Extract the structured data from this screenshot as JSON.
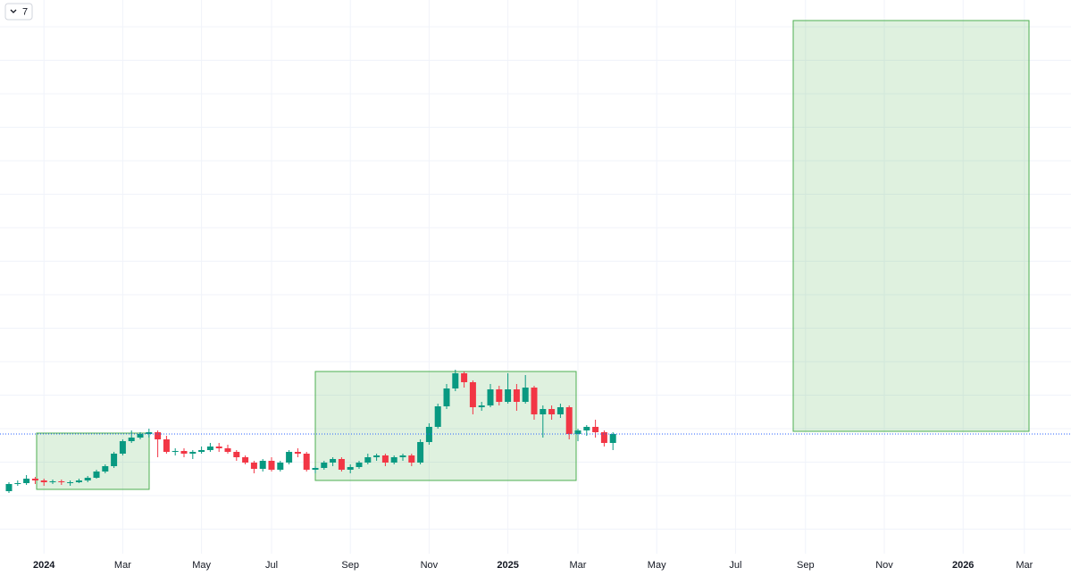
{
  "toolbar_label": "7",
  "chart_data": {
    "type": "candlestick",
    "categories": [
      null,
      null,
      null,
      null,
      "2024",
      null,
      null,
      null,
      null,
      null,
      null,
      null,
      null,
      "Mar",
      null,
      null,
      null,
      null,
      null,
      null,
      null,
      null,
      "May",
      null,
      null,
      null,
      null,
      null,
      null,
      null,
      "Jul",
      null,
      null,
      null,
      null,
      null,
      null,
      null,
      null,
      "Sep",
      null,
      null,
      null,
      null,
      null,
      null,
      null,
      null,
      "Nov",
      null,
      null,
      null,
      null,
      null,
      null,
      null,
      null,
      "2025",
      null,
      null,
      null,
      null,
      null,
      null,
      null,
      "Mar",
      null,
      null,
      null,
      null,
      null,
      null,
      null,
      null,
      "May",
      null,
      null,
      null,
      null,
      null,
      null,
      null,
      null,
      "Jul",
      null,
      null,
      null,
      null,
      null,
      null,
      null,
      "Sep",
      null,
      null,
      null,
      null,
      null,
      null,
      null,
      null,
      "Nov",
      null,
      null,
      null,
      null,
      null,
      null,
      null,
      null,
      "2026",
      null,
      null,
      null,
      null,
      null,
      null,
      "Mar",
      null
    ],
    "open": [
      70,
      78,
      79,
      84,
      82,
      80,
      81,
      80,
      80,
      82,
      85,
      92,
      98,
      112,
      126,
      130,
      134,
      136,
      128,
      114,
      115,
      112,
      114,
      116,
      120,
      118,
      114,
      108,
      102,
      95,
      104,
      94,
      102,
      114,
      112,
      94,
      96,
      102,
      106,
      94,
      97,
      102,
      108,
      110,
      102,
      108,
      110,
      102,
      125,
      142,
      165,
      185,
      202,
      192,
      164,
      166,
      184,
      170,
      184,
      170,
      186,
      156,
      162,
      156,
      164,
      134,
      138,
      142,
      136,
      124,
      null,
      null,
      null,
      null,
      null,
      null,
      null,
      null,
      null,
      null,
      null,
      null,
      null,
      null,
      null,
      null,
      null,
      null,
      null,
      null,
      null,
      null,
      null,
      null,
      null,
      null,
      null,
      null,
      null,
      null,
      null,
      null,
      null,
      null,
      null,
      null,
      null,
      null,
      null,
      null,
      null,
      null,
      null,
      null,
      null,
      null,
      null,
      null
    ],
    "high": [
      80,
      82,
      88,
      86,
      84,
      83,
      83,
      82,
      84,
      87,
      94,
      100,
      114,
      128,
      138,
      136,
      140,
      138,
      132,
      118,
      118,
      116,
      120,
      124,
      124,
      122,
      116,
      110,
      104,
      106,
      108,
      104,
      116,
      118,
      114,
      98,
      104,
      108,
      108,
      100,
      104,
      112,
      112,
      112,
      110,
      112,
      112,
      128,
      146,
      168,
      190,
      206,
      204,
      194,
      170,
      190,
      188,
      202,
      190,
      200,
      188,
      166,
      166,
      168,
      166,
      140,
      144,
      150,
      138,
      136,
      null,
      null,
      null,
      null,
      null,
      null,
      null,
      null,
      null,
      null,
      null,
      null,
      null,
      null,
      null,
      null,
      null,
      null,
      null,
      null,
      null,
      null,
      null,
      null,
      null,
      null,
      null,
      null,
      null,
      null,
      null,
      null,
      null,
      null,
      null,
      null,
      null,
      null,
      null,
      null,
      null,
      null,
      null,
      null,
      null,
      null,
      null,
      null
    ],
    "low": [
      68,
      76,
      77,
      78,
      76,
      78,
      77,
      76,
      79,
      80,
      84,
      90,
      96,
      110,
      124,
      128,
      130,
      108,
      112,
      110,
      108,
      106,
      112,
      114,
      114,
      112,
      104,
      100,
      90,
      92,
      92,
      92,
      100,
      108,
      92,
      90,
      94,
      98,
      92,
      90,
      95,
      100,
      104,
      98,
      100,
      104,
      98,
      100,
      122,
      140,
      162,
      182,
      186,
      156,
      160,
      164,
      166,
      168,
      160,
      168,
      150,
      130,
      150,
      152,
      128,
      126,
      132,
      130,
      120,
      116,
      null,
      null,
      null,
      null,
      null,
      null,
      null,
      null,
      null,
      null,
      null,
      null,
      null,
      null,
      null,
      null,
      null,
      null,
      null,
      null,
      null,
      null,
      null,
      null,
      null,
      null,
      null,
      null,
      null,
      null,
      null,
      null,
      null,
      null,
      null,
      null,
      null,
      null,
      null,
      null,
      null,
      null,
      null,
      null,
      null,
      null,
      null,
      null
    ],
    "close": [
      78,
      79,
      84,
      82,
      80,
      81,
      80,
      80,
      82,
      85,
      92,
      98,
      112,
      126,
      130,
      134,
      136,
      128,
      114,
      115,
      112,
      114,
      116,
      120,
      118,
      114,
      108,
      102,
      95,
      104,
      94,
      102,
      114,
      112,
      94,
      96,
      102,
      106,
      94,
      97,
      102,
      108,
      110,
      102,
      108,
      110,
      102,
      125,
      142,
      165,
      185,
      202,
      192,
      164,
      166,
      184,
      170,
      184,
      170,
      186,
      156,
      162,
      156,
      164,
      134,
      138,
      142,
      136,
      124,
      134,
      null,
      null,
      null,
      null,
      null,
      null,
      null,
      null,
      null,
      null,
      null,
      null,
      null,
      null,
      null,
      null,
      null,
      null,
      null,
      null,
      null,
      null,
      null,
      null,
      null,
      null,
      null,
      null,
      null,
      null,
      null,
      null,
      null,
      null,
      null,
      null,
      null,
      null,
      null,
      null,
      null,
      null,
      null,
      null,
      null,
      null,
      null,
      null
    ],
    "up_color": "#089981",
    "down_color": "#f23645",
    "price_line_color": "#2962ff",
    "ylim": [
      0,
      620
    ],
    "yticks": [
      27.5,
      65,
      102.5,
      140,
      177.5,
      215,
      252.5,
      290,
      327.5,
      365,
      402.5,
      440,
      477.5,
      515,
      552.5,
      590
    ],
    "grid": true
  }
}
